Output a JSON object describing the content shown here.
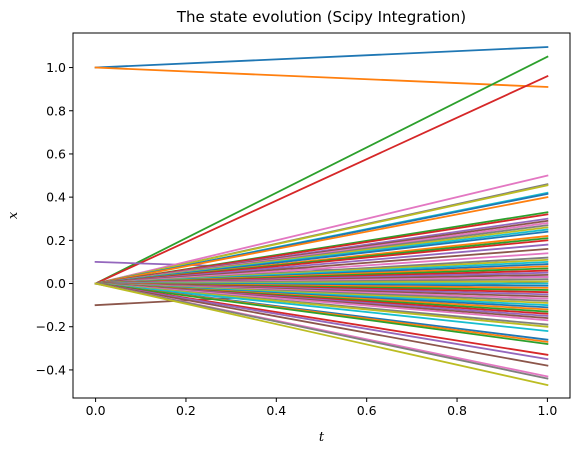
{
  "chart_data": {
    "type": "line",
    "title": "The state evolution (Scipy Integration)",
    "xlabel": "t",
    "ylabel": "x",
    "xlim": [
      -0.05,
      1.05
    ],
    "ylim": [
      -0.53,
      1.16
    ],
    "x_ticks": [
      0.0,
      0.2,
      0.4,
      0.6,
      0.8,
      1.0
    ],
    "x_tick_labels": [
      "0.0",
      "0.2",
      "0.4",
      "0.6",
      "0.8",
      "1.0"
    ],
    "y_ticks": [
      -0.4,
      -0.2,
      0.0,
      0.2,
      0.4,
      0.6,
      0.8,
      1.0
    ],
    "y_tick_labels": [
      "−0.4",
      "−0.2",
      "0.0",
      "0.2",
      "0.4",
      "0.6",
      "0.8",
      "1.0"
    ],
    "grid": false,
    "legend": "none",
    "x": [
      0.0,
      1.0
    ],
    "palette": [
      "#1f77b4",
      "#ff7f0e",
      "#2ca02c",
      "#d62728",
      "#9467bd",
      "#8c564b",
      "#e377c2",
      "#7f7f7f",
      "#bcbd22",
      "#17becf"
    ],
    "series": [
      {
        "values": [
          1.0,
          1.095
        ]
      },
      {
        "values": [
          1.0,
          0.91
        ]
      },
      {
        "values": [
          0.0,
          1.05
        ]
      },
      {
        "values": [
          0.0,
          0.96
        ]
      },
      {
        "values": [
          0.1,
          0.03
        ]
      },
      {
        "values": [
          -0.1,
          0.01
        ]
      },
      {
        "values": [
          0.0,
          0.5
        ]
      },
      {
        "values": [
          0.0,
          0.46
        ]
      },
      {
        "values": [
          0.0,
          0.455
        ]
      },
      {
        "values": [
          0.0,
          0.42
        ]
      },
      {
        "values": [
          0.0,
          0.415
        ]
      },
      {
        "values": [
          0.0,
          0.4
        ]
      },
      {
        "values": [
          0.0,
          0.33
        ]
      },
      {
        "values": [
          0.0,
          0.32
        ]
      },
      {
        "values": [
          0.0,
          0.3
        ]
      },
      {
        "values": [
          0.0,
          0.29
        ]
      },
      {
        "values": [
          0.0,
          0.28
        ]
      },
      {
        "values": [
          0.0,
          0.27
        ]
      },
      {
        "values": [
          0.0,
          0.26
        ]
      },
      {
        "values": [
          0.0,
          0.25
        ]
      },
      {
        "values": [
          0.0,
          0.24
        ]
      },
      {
        "values": [
          0.0,
          0.22
        ]
      },
      {
        "values": [
          0.0,
          0.21
        ]
      },
      {
        "values": [
          0.0,
          0.2
        ]
      },
      {
        "values": [
          0.0,
          0.18
        ]
      },
      {
        "values": [
          0.0,
          0.16
        ]
      },
      {
        "values": [
          0.0,
          0.14
        ]
      },
      {
        "values": [
          0.0,
          0.12
        ]
      },
      {
        "values": [
          0.0,
          0.11
        ]
      },
      {
        "values": [
          0.0,
          0.1
        ]
      },
      {
        "values": [
          0.0,
          0.09
        ]
      },
      {
        "values": [
          0.0,
          0.08
        ]
      },
      {
        "values": [
          0.0,
          0.07
        ]
      },
      {
        "values": [
          0.0,
          0.06
        ]
      },
      {
        "values": [
          0.0,
          0.05
        ]
      },
      {
        "values": [
          0.0,
          0.04
        ]
      },
      {
        "values": [
          0.0,
          0.03
        ]
      },
      {
        "values": [
          0.0,
          0.02
        ]
      },
      {
        "values": [
          0.0,
          0.01
        ]
      },
      {
        "values": [
          0.0,
          0.0
        ]
      },
      {
        "values": [
          0.0,
          -0.01
        ]
      },
      {
        "values": [
          0.0,
          -0.02
        ]
      },
      {
        "values": [
          0.0,
          -0.03
        ]
      },
      {
        "values": [
          0.0,
          -0.04
        ]
      },
      {
        "values": [
          0.0,
          -0.05
        ]
      },
      {
        "values": [
          0.0,
          -0.06
        ]
      },
      {
        "values": [
          0.0,
          -0.07
        ]
      },
      {
        "values": [
          0.0,
          -0.08
        ]
      },
      {
        "values": [
          0.0,
          -0.09
        ]
      },
      {
        "values": [
          0.0,
          -0.1
        ]
      },
      {
        "values": [
          0.0,
          -0.11
        ]
      },
      {
        "values": [
          0.0,
          -0.12
        ]
      },
      {
        "values": [
          0.0,
          -0.13
        ]
      },
      {
        "values": [
          0.0,
          -0.14
        ]
      },
      {
        "values": [
          0.0,
          -0.15
        ]
      },
      {
        "values": [
          0.0,
          -0.16
        ]
      },
      {
        "values": [
          0.0,
          -0.17
        ]
      },
      {
        "values": [
          0.0,
          -0.19
        ]
      },
      {
        "values": [
          0.0,
          -0.2
        ]
      },
      {
        "values": [
          0.0,
          -0.22
        ]
      },
      {
        "values": [
          0.0,
          -0.26
        ]
      },
      {
        "values": [
          0.0,
          -0.27
        ]
      },
      {
        "values": [
          0.0,
          -0.28
        ]
      },
      {
        "values": [
          0.0,
          -0.33
        ]
      },
      {
        "values": [
          0.0,
          -0.35
        ]
      },
      {
        "values": [
          0.0,
          -0.38
        ]
      },
      {
        "values": [
          0.0,
          -0.43
        ]
      },
      {
        "values": [
          0.0,
          -0.44
        ]
      },
      {
        "values": [
          0.0,
          -0.47
        ]
      }
    ]
  }
}
